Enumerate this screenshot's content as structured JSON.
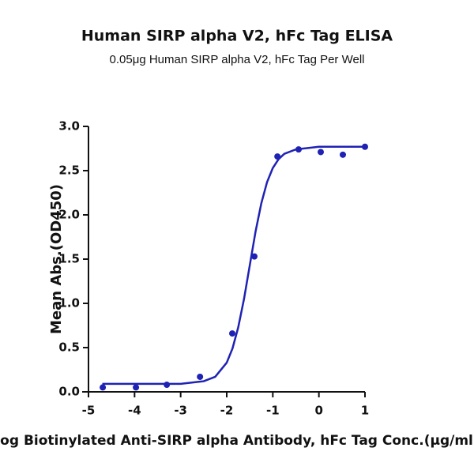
{
  "chart_data": {
    "type": "scatter",
    "title": "Human SIRP alpha V2, hFc Tag ELISA",
    "subtitle": "0.05μg Human SIRP alpha V2, hFc Tag Per Well",
    "x_label": "Log Biotinylated Anti-SIRP alpha Antibody, hFc Tag Conc.(μg/ml)",
    "y_label": "Mean Abs.(OD450)",
    "xlim": [
      -5,
      1
    ],
    "xticks": [
      -5,
      -4,
      -3,
      -2,
      -1,
      0,
      1
    ],
    "ylim": [
      0,
      3
    ],
    "yticks": [
      {
        "value": 0,
        "label": "0.0"
      },
      0.5,
      {
        "value": 1,
        "label": "1.0"
      },
      1.5,
      {
        "value": 2,
        "label": "2.0"
      },
      2.5,
      {
        "value": 3,
        "label": "3.0"
      }
    ],
    "series": [
      {
        "type": "scatter",
        "color": "#1f22b4",
        "x": [
          -4.69,
          -3.97,
          -3.3,
          -2.58,
          -1.88,
          -1.4,
          -0.9,
          -0.44,
          0.04,
          0.52,
          1.0
        ],
        "values": [
          0.05,
          0.05,
          0.08,
          0.17,
          0.66,
          1.53,
          2.66,
          2.74,
          2.71,
          2.68,
          2.77
        ]
      },
      {
        "type": "line",
        "color": "#1f22b4",
        "x": [
          -4.7,
          -4,
          -3.5,
          -3,
          -2.5,
          -2.25,
          -2,
          -1.875,
          -1.75,
          -1.625,
          -1.5,
          -1.375,
          -1.25,
          -1.125,
          -1,
          -0.875,
          -0.75,
          -0.5,
          0,
          0.5,
          1
        ],
        "values": [
          0.09,
          0.09,
          0.09,
          0.09,
          0.12,
          0.17,
          0.33,
          0.49,
          0.73,
          1.05,
          1.43,
          1.81,
          2.13,
          2.37,
          2.53,
          2.63,
          2.69,
          2.74,
          2.77,
          2.77,
          2.77
        ]
      }
    ]
  }
}
